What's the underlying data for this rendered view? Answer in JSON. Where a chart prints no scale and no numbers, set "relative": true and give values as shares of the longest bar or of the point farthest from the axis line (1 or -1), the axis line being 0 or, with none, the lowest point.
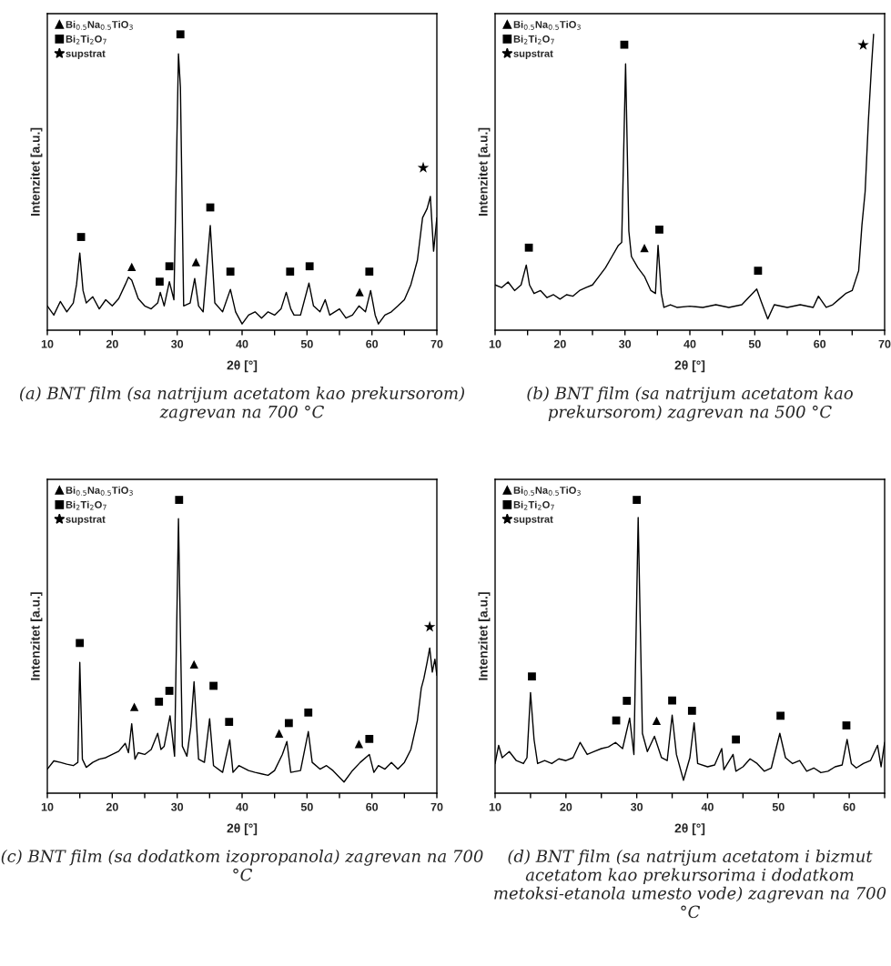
{
  "chart_data": [
    {
      "type": "line",
      "relative": true,
      "xlabel": "2θ [°]",
      "ylabel": "Intenzitet [a.u.]",
      "xlim": [
        10,
        70
      ],
      "xticks": [
        10,
        {
          "value": 15,
          "label": null
        },
        20,
        {
          "value": 25,
          "label": null
        },
        30,
        {
          "value": 35,
          "label": null
        },
        40,
        {
          "value": 45,
          "label": null
        },
        50,
        {
          "value": 55,
          "label": null
        },
        60,
        {
          "value": 65,
          "label": null
        },
        70
      ],
      "legend": "top left",
      "annotations": [
        "(a) BNT film (sa natrijum acetatom kao prekursorom) zagrevan na 700 °C"
      ],
      "series": [
        {
          "color": "#000000",
          "x": [
            10,
            11,
            12,
            13,
            14,
            14.5,
            15,
            15.5,
            16,
            17,
            18,
            19,
            20,
            21,
            22,
            22.5,
            23,
            24,
            25,
            26,
            27,
            27.4,
            28,
            28.8,
            29.5,
            30.2,
            30.5,
            31,
            32,
            32.7,
            33.3,
            34,
            35.1,
            35.8,
            37,
            38.2,
            39,
            40,
            41,
            42,
            43,
            44,
            45,
            46,
            46.8,
            47.5,
            48,
            49,
            50.3,
            51,
            52,
            52.8,
            53.5,
            55,
            56,
            57,
            58,
            59,
            59.8,
            60.5,
            61,
            62,
            63,
            64,
            65,
            66,
            67,
            67.8,
            68.5,
            69,
            69.5,
            70
          ],
          "values": [
            0.082,
            0.051,
            0.097,
            0.062,
            0.092,
            0.154,
            0.261,
            0.134,
            0.092,
            0.113,
            0.072,
            0.103,
            0.082,
            0.107,
            0.154,
            0.179,
            0.169,
            0.107,
            0.082,
            0.072,
            0.092,
            0.128,
            0.082,
            0.164,
            0.103,
            0.934,
            0.821,
            0.082,
            0.092,
            0.175,
            0.082,
            0.062,
            0.354,
            0.092,
            0.062,
            0.138,
            0.062,
            0.021,
            0.051,
            0.062,
            0.041,
            0.062,
            0.051,
            0.072,
            0.128,
            0.072,
            0.051,
            0.051,
            0.159,
            0.082,
            0.062,
            0.103,
            0.051,
            0.072,
            0.041,
            0.051,
            0.082,
            0.062,
            0.134,
            0.051,
            0.021,
            0.051,
            0.062,
            0.082,
            0.103,
            0.154,
            0.236,
            0.38,
            0.411,
            0.452,
            0.267,
            0.38
          ]
        },
        {
          "type": "scatter",
          "name": "Bi$_{0.5}$Na$_{0.5}$TiO$_{3}$",
          "marker": "triangle",
          "color": "#000000",
          "x": [
            23.0,
            32.9,
            58.1
          ],
          "values": [
            0.214,
            0.23,
            0.129
          ]
        },
        {
          "type": "scatter",
          "name": "Bi$_{2}$Ti$_{2}$O$_{7}$",
          "marker": "square",
          "color": "#000000",
          "x": [
            15.2,
            27.3,
            28.8,
            30.5,
            35.1,
            38.2,
            47.4,
            50.4,
            59.6
          ],
          "values": [
            0.315,
            0.164,
            0.216,
            1.0,
            0.415,
            0.198,
            0.198,
            0.216,
            0.198
          ]
        },
        {
          "type": "scatter",
          "name": "supstrat",
          "marker": "star",
          "color": "#000000",
          "x": [
            67.9
          ],
          "values": [
            0.549
          ]
        }
      ]
    },
    {
      "type": "line",
      "relative": true,
      "xlabel": "2θ [°]",
      "ylabel": "Intenzitet [a.u.]",
      "xlim": [
        10,
        70
      ],
      "xticks": [
        10,
        {
          "value": 15,
          "label": null
        },
        20,
        {
          "value": 25,
          "label": null
        },
        30,
        {
          "value": 35,
          "label": null
        },
        40,
        {
          "value": 45,
          "label": null
        },
        50,
        {
          "value": 55,
          "label": null
        },
        60,
        {
          "value": 65,
          "label": null
        },
        70
      ],
      "legend": "top left",
      "annotations": [
        "(b) BNT film (sa natrijum acetatom kao prekursorom) zagrevan na 500 °C"
      ],
      "series": [
        {
          "color": "#000000",
          "x": [
            10,
            11,
            12,
            13,
            14,
            14.8,
            15.3,
            16,
            17,
            18,
            19,
            20,
            21,
            22,
            23,
            24,
            25,
            26,
            27,
            28,
            29,
            29.5,
            30.1,
            30.6,
            31,
            32,
            33,
            34,
            34.7,
            35.1,
            35.6,
            36,
            37,
            38,
            40,
            42,
            44,
            46,
            48,
            50.3,
            51,
            52,
            53,
            55,
            57,
            59,
            59.8,
            61,
            62,
            63,
            64,
            65,
            66,
            66.5,
            67,
            67.5,
            68,
            68.3
          ],
          "values": [
            0.153,
            0.144,
            0.163,
            0.134,
            0.153,
            0.22,
            0.153,
            0.124,
            0.134,
            0.11,
            0.12,
            0.105,
            0.12,
            0.115,
            0.134,
            0.144,
            0.153,
            0.182,
            0.211,
            0.249,
            0.287,
            0.297,
            0.9,
            0.335,
            0.249,
            0.211,
            0.182,
            0.134,
            0.124,
            0.287,
            0.124,
            0.077,
            0.086,
            0.077,
            0.081,
            0.077,
            0.086,
            0.077,
            0.086,
            0.139,
            0.096,
            0.038,
            0.086,
            0.077,
            0.086,
            0.077,
            0.115,
            0.077,
            0.086,
            0.105,
            0.124,
            0.134,
            0.201,
            0.354,
            0.469,
            0.708,
            0.9,
            1.0
          ]
        },
        {
          "type": "scatter",
          "name": "Bi$_{0.5}$Na$_{0.5}$TiO$_{3}$",
          "marker": "triangle",
          "color": "#000000",
          "x": [
            33.0
          ],
          "values": [
            0.278
          ]
        },
        {
          "type": "scatter",
          "name": "Bi$_{2}$Ti$_{2}$O$_{7}$",
          "marker": "square",
          "color": "#000000",
          "x": [
            15.2,
            29.9,
            35.3,
            50.5
          ],
          "values": [
            0.279,
            0.965,
            0.34,
            0.201
          ]
        },
        {
          "type": "scatter",
          "name": "supstrat",
          "marker": "star",
          "color": "#000000",
          "x": [
            66.7
          ],
          "values": [
            0.964
          ]
        }
      ]
    },
    {
      "type": "line",
      "relative": true,
      "xlabel": "2θ [°]",
      "ylabel": "Intenzitet [a.u.]",
      "xlim": [
        10,
        70
      ],
      "xticks": [
        10,
        {
          "value": 15,
          "label": null
        },
        20,
        {
          "value": 25,
          "label": null
        },
        30,
        {
          "value": 35,
          "label": null
        },
        40,
        {
          "value": 45,
          "label": null
        },
        50,
        {
          "value": 55,
          "label": null
        },
        60,
        {
          "value": 65,
          "label": null
        },
        70
      ],
      "legend": "top left",
      "annotations": [
        "(c) BNT film (sa dodatkom izopropanola) zagrevan na 700 °C"
      ],
      "series": [
        {
          "color": "#000000",
          "x": [
            10,
            11,
            12,
            13,
            14,
            14.7,
            15,
            15.4,
            16,
            17,
            18,
            19,
            20,
            21,
            22,
            22.5,
            23,
            23.5,
            24,
            25,
            26,
            27,
            27.5,
            28,
            28.9,
            29.6,
            30.2,
            30.8,
            31.5,
            32.1,
            32.6,
            33.3,
            34.2,
            35,
            35.6,
            37,
            38.1,
            38.6,
            39.5,
            41,
            42,
            43,
            44,
            45,
            46.2,
            46.9,
            47.5,
            49,
            50.2,
            50.8,
            52,
            53,
            54,
            55.7,
            57,
            58.2,
            59.6,
            60.3,
            61,
            62,
            63,
            64,
            65,
            66,
            67,
            67.6,
            68,
            68.5,
            68.9,
            69.3,
            69.7,
            70
          ],
          "values": [
            0.082,
            0.11,
            0.105,
            0.099,
            0.094,
            0.105,
            0.446,
            0.116,
            0.088,
            0.105,
            0.116,
            0.121,
            0.132,
            0.143,
            0.17,
            0.138,
            0.237,
            0.116,
            0.138,
            0.132,
            0.149,
            0.204,
            0.149,
            0.16,
            0.264,
            0.126,
            0.936,
            0.16,
            0.126,
            0.226,
            0.38,
            0.116,
            0.105,
            0.254,
            0.094,
            0.071,
            0.182,
            0.071,
            0.094,
            0.077,
            0.071,
            0.066,
            0.061,
            0.077,
            0.132,
            0.176,
            0.071,
            0.077,
            0.21,
            0.105,
            0.082,
            0.094,
            0.077,
            0.038,
            0.077,
            0.105,
            0.132,
            0.071,
            0.094,
            0.082,
            0.105,
            0.082,
            0.105,
            0.149,
            0.248,
            0.358,
            0.391,
            0.446,
            0.495,
            0.413,
            0.457,
            0.402
          ]
        },
        {
          "type": "scatter",
          "name": "Bi$_{0.5}$Na$_{0.5}$TiO$_{3}$",
          "marker": "triangle",
          "color": "#000000",
          "x": [
            23.4,
            32.6,
            45.7,
            58.0
          ],
          "values": [
            0.294,
            0.439,
            0.204,
            0.168
          ]
        },
        {
          "type": "scatter",
          "name": "Bi$_{2}$Ti$_{2}$O$_{7}$",
          "marker": "square",
          "color": "#000000",
          "x": [
            15.0,
            27.2,
            28.8,
            30.3,
            35.6,
            38.0,
            47.2,
            50.2,
            59.6
          ],
          "values": [
            0.512,
            0.312,
            0.349,
            1.0,
            0.366,
            0.243,
            0.239,
            0.275,
            0.185
          ]
        },
        {
          "type": "scatter",
          "name": "supstrat",
          "marker": "star",
          "color": "#000000",
          "x": [
            68.9
          ],
          "values": [
            0.567
          ]
        }
      ]
    },
    {
      "type": "line",
      "relative": true,
      "xlabel": "2θ [°]",
      "ylabel": "Intenzitet [a.u.]",
      "xlim": [
        10,
        65
      ],
      "xticks": [
        10,
        {
          "value": 15,
          "label": null
        },
        20,
        {
          "value": 25,
          "label": null
        },
        30,
        {
          "value": 35,
          "label": null
        },
        40,
        {
          "value": 45,
          "label": null
        },
        50,
        {
          "value": 55,
          "label": null
        },
        60,
        {
          "value": 65,
          "label": null
        }
      ],
      "legend": "top left",
      "annotations": [
        "(d) BNT film (sa natrijum acetatom i bizmut acetatom kao prekursorima i dodatkom metoksi-etanola umesto vode) zagrevan na 700 °C"
      ],
      "series": [
        {
          "color": "#000000",
          "x": [
            10,
            10.5,
            11,
            12,
            13,
            14,
            14.5,
            15,
            15.5,
            16,
            17,
            18,
            19,
            20,
            21,
            22,
            23,
            24,
            25,
            26,
            27,
            28,
            29,
            29.6,
            30.2,
            30.8,
            31.5,
            32.5,
            33.5,
            34.3,
            35,
            35.6,
            36.6,
            37.5,
            38.1,
            38.6,
            40,
            41,
            42,
            42.3,
            43.6,
            44,
            45,
            46,
            47,
            48,
            49,
            50.2,
            51,
            52,
            53,
            54,
            55,
            56,
            57,
            58,
            59,
            59.7,
            60.3,
            61,
            62,
            63,
            64,
            64.5,
            65
          ],
          "values": [
            0.101,
            0.163,
            0.121,
            0.142,
            0.111,
            0.101,
            0.121,
            0.343,
            0.183,
            0.101,
            0.111,
            0.101,
            0.117,
            0.111,
            0.121,
            0.173,
            0.132,
            0.142,
            0.152,
            0.158,
            0.173,
            0.152,
            0.256,
            0.132,
            0.94,
            0.204,
            0.142,
            0.194,
            0.121,
            0.111,
            0.266,
            0.132,
            0.044,
            0.121,
            0.24,
            0.101,
            0.09,
            0.096,
            0.152,
            0.08,
            0.132,
            0.075,
            0.09,
            0.117,
            0.101,
            0.075,
            0.086,
            0.204,
            0.121,
            0.101,
            0.111,
            0.075,
            0.086,
            0.07,
            0.075,
            0.09,
            0.096,
            0.183,
            0.101,
            0.086,
            0.101,
            0.111,
            0.163,
            0.09,
            0.173
          ]
        },
        {
          "type": "scatter",
          "name": "Bi$_{0.5}$Na$_{0.5}$TiO$_{3}$",
          "marker": "triangle",
          "color": "#000000",
          "x": [
            32.8
          ],
          "values": [
            0.247
          ]
        },
        {
          "type": "scatter",
          "name": "Bi$_{2}$Ti$_{2}$O$_{7}$",
          "marker": "square",
          "color": "#000000",
          "x": [
            15.2,
            27.1,
            28.6,
            30.0,
            35.0,
            37.8,
            44.0,
            50.3,
            59.6
          ],
          "values": [
            0.398,
            0.248,
            0.315,
            1.0,
            0.316,
            0.281,
            0.183,
            0.264,
            0.231
          ]
        },
        {
          "type": "scatter",
          "name": "supstrat",
          "marker": "star",
          "color": "#000000"
        }
      ]
    }
  ]
}
